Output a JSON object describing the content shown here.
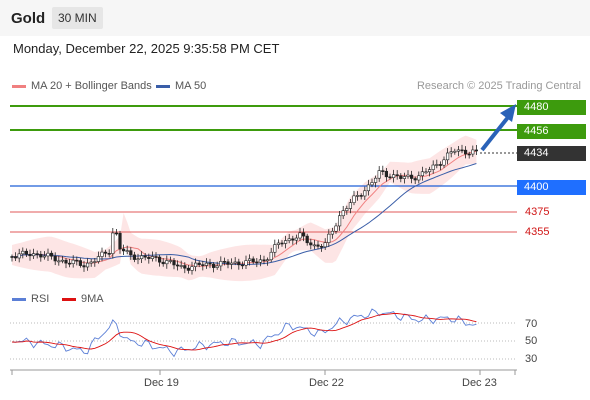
{
  "header": {
    "title": "Gold",
    "timeframe": "30 MIN"
  },
  "datetime": "Monday, December 22, 2025 9:35:58 PM CET",
  "legend": {
    "ma20": "MA 20 + Bollinger Bands",
    "ma50": "MA 50",
    "credit": "Research © 2025 Trading Central"
  },
  "colors": {
    "resistance": "#3d9b0d",
    "pivot": "#1f5fd6",
    "support": "#e05a5a",
    "ma20": "#f08080",
    "ma50": "#3a5ea8",
    "bands": "#fde1e1",
    "rsi": "#5b7fd6",
    "rsi_ma": "#dd1111"
  },
  "levels": [
    {
      "value": "4480",
      "kind": "resistance"
    },
    {
      "value": "4456",
      "kind": "resistance"
    },
    {
      "value": "4434",
      "kind": "last"
    },
    {
      "value": "4400",
      "kind": "pivot"
    },
    {
      "value": "4375",
      "kind": "support"
    },
    {
      "value": "4355",
      "kind": "support"
    }
  ],
  "rsi": {
    "label": "RSI",
    "ma_label": "9MA",
    "ticks": [
      "70",
      "50",
      "30"
    ]
  },
  "xaxis": {
    "ticks": [
      "Dec 19",
      "Dec 22",
      "Dec 23"
    ]
  }
}
